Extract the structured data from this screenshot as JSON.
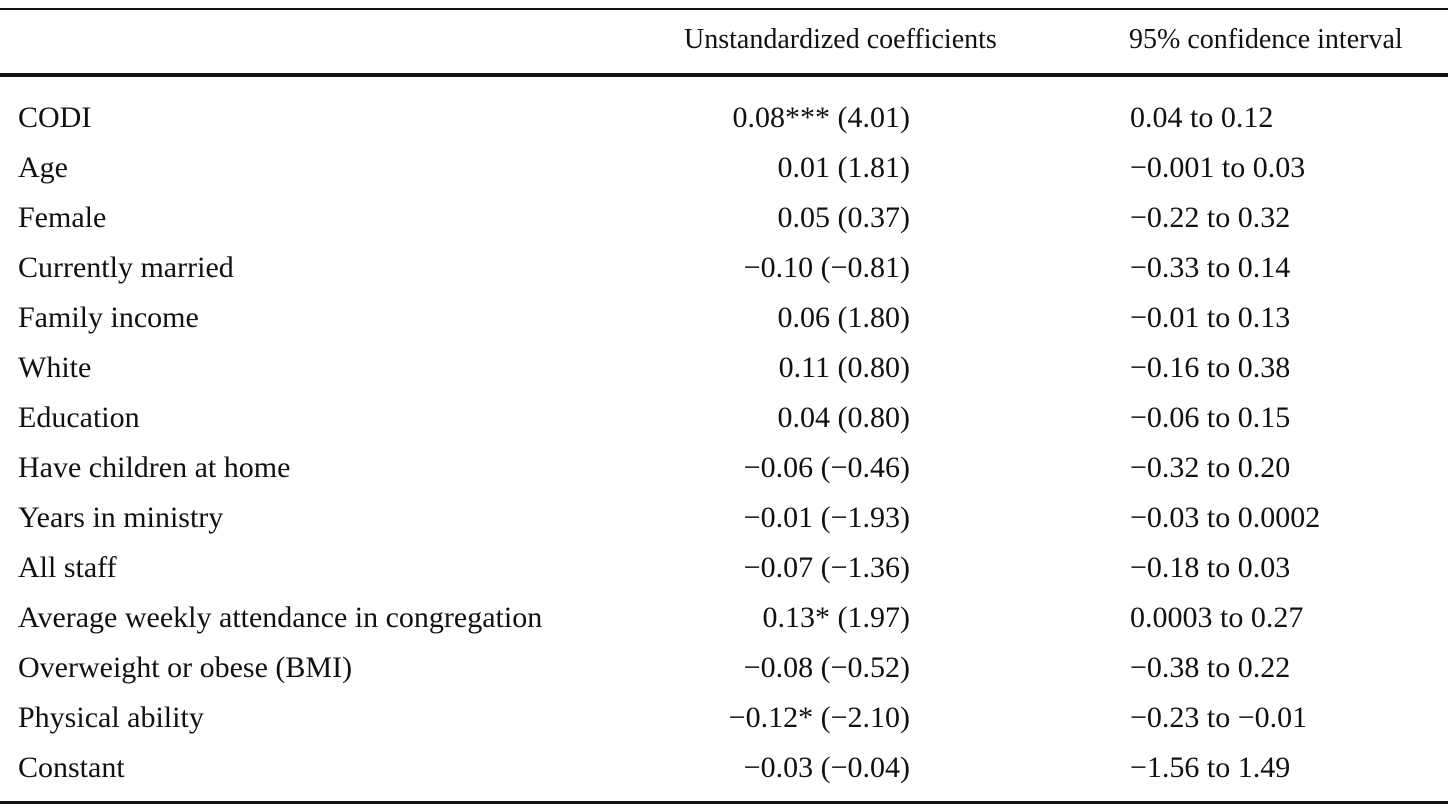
{
  "table": {
    "columns": [
      "",
      "Unstandardized coefficients",
      "95% confidence interval"
    ],
    "rows": [
      {
        "variable": "CODI",
        "coefficient": "0.08*** (4.01)",
        "ci": "0.04 to 0.12"
      },
      {
        "variable": "Age",
        "coefficient": "0.01 (1.81)",
        "ci": "−0.001 to 0.03"
      },
      {
        "variable": "Female",
        "coefficient": "0.05 (0.37)",
        "ci": "−0.22 to 0.32"
      },
      {
        "variable": "Currently married",
        "coefficient": "−0.10 (−0.81)",
        "ci": "−0.33 to 0.14"
      },
      {
        "variable": "Family income",
        "coefficient": "0.06 (1.80)",
        "ci": "−0.01 to 0.13"
      },
      {
        "variable": "White",
        "coefficient": "0.11 (0.80)",
        "ci": "−0.16 to 0.38"
      },
      {
        "variable": "Education",
        "coefficient": "0.04 (0.80)",
        "ci": "−0.06 to 0.15"
      },
      {
        "variable": "Have children at home",
        "coefficient": "−0.06 (−0.46)",
        "ci": "−0.32 to 0.20"
      },
      {
        "variable": "Years in ministry",
        "coefficient": "−0.01 (−1.93)",
        "ci": "−0.03 to 0.0002"
      },
      {
        "variable": "All staff",
        "coefficient": "−0.07 (−1.36)",
        "ci": "−0.18 to 0.03"
      },
      {
        "variable": "Average weekly attendance in congregation",
        "coefficient": "0.13* (1.97)",
        "ci": "0.0003 to 0.27"
      },
      {
        "variable": "Overweight or obese (BMI)",
        "coefficient": "−0.08 (−0.52)",
        "ci": "−0.38 to 0.22"
      },
      {
        "variable": "Physical ability",
        "coefficient": "−0.12* (−2.10)",
        "ci": "−0.23 to −0.01"
      },
      {
        "variable": "Constant",
        "coefficient": "−0.03 (−0.04)",
        "ci": "−1.56 to 1.49"
      }
    ]
  }
}
